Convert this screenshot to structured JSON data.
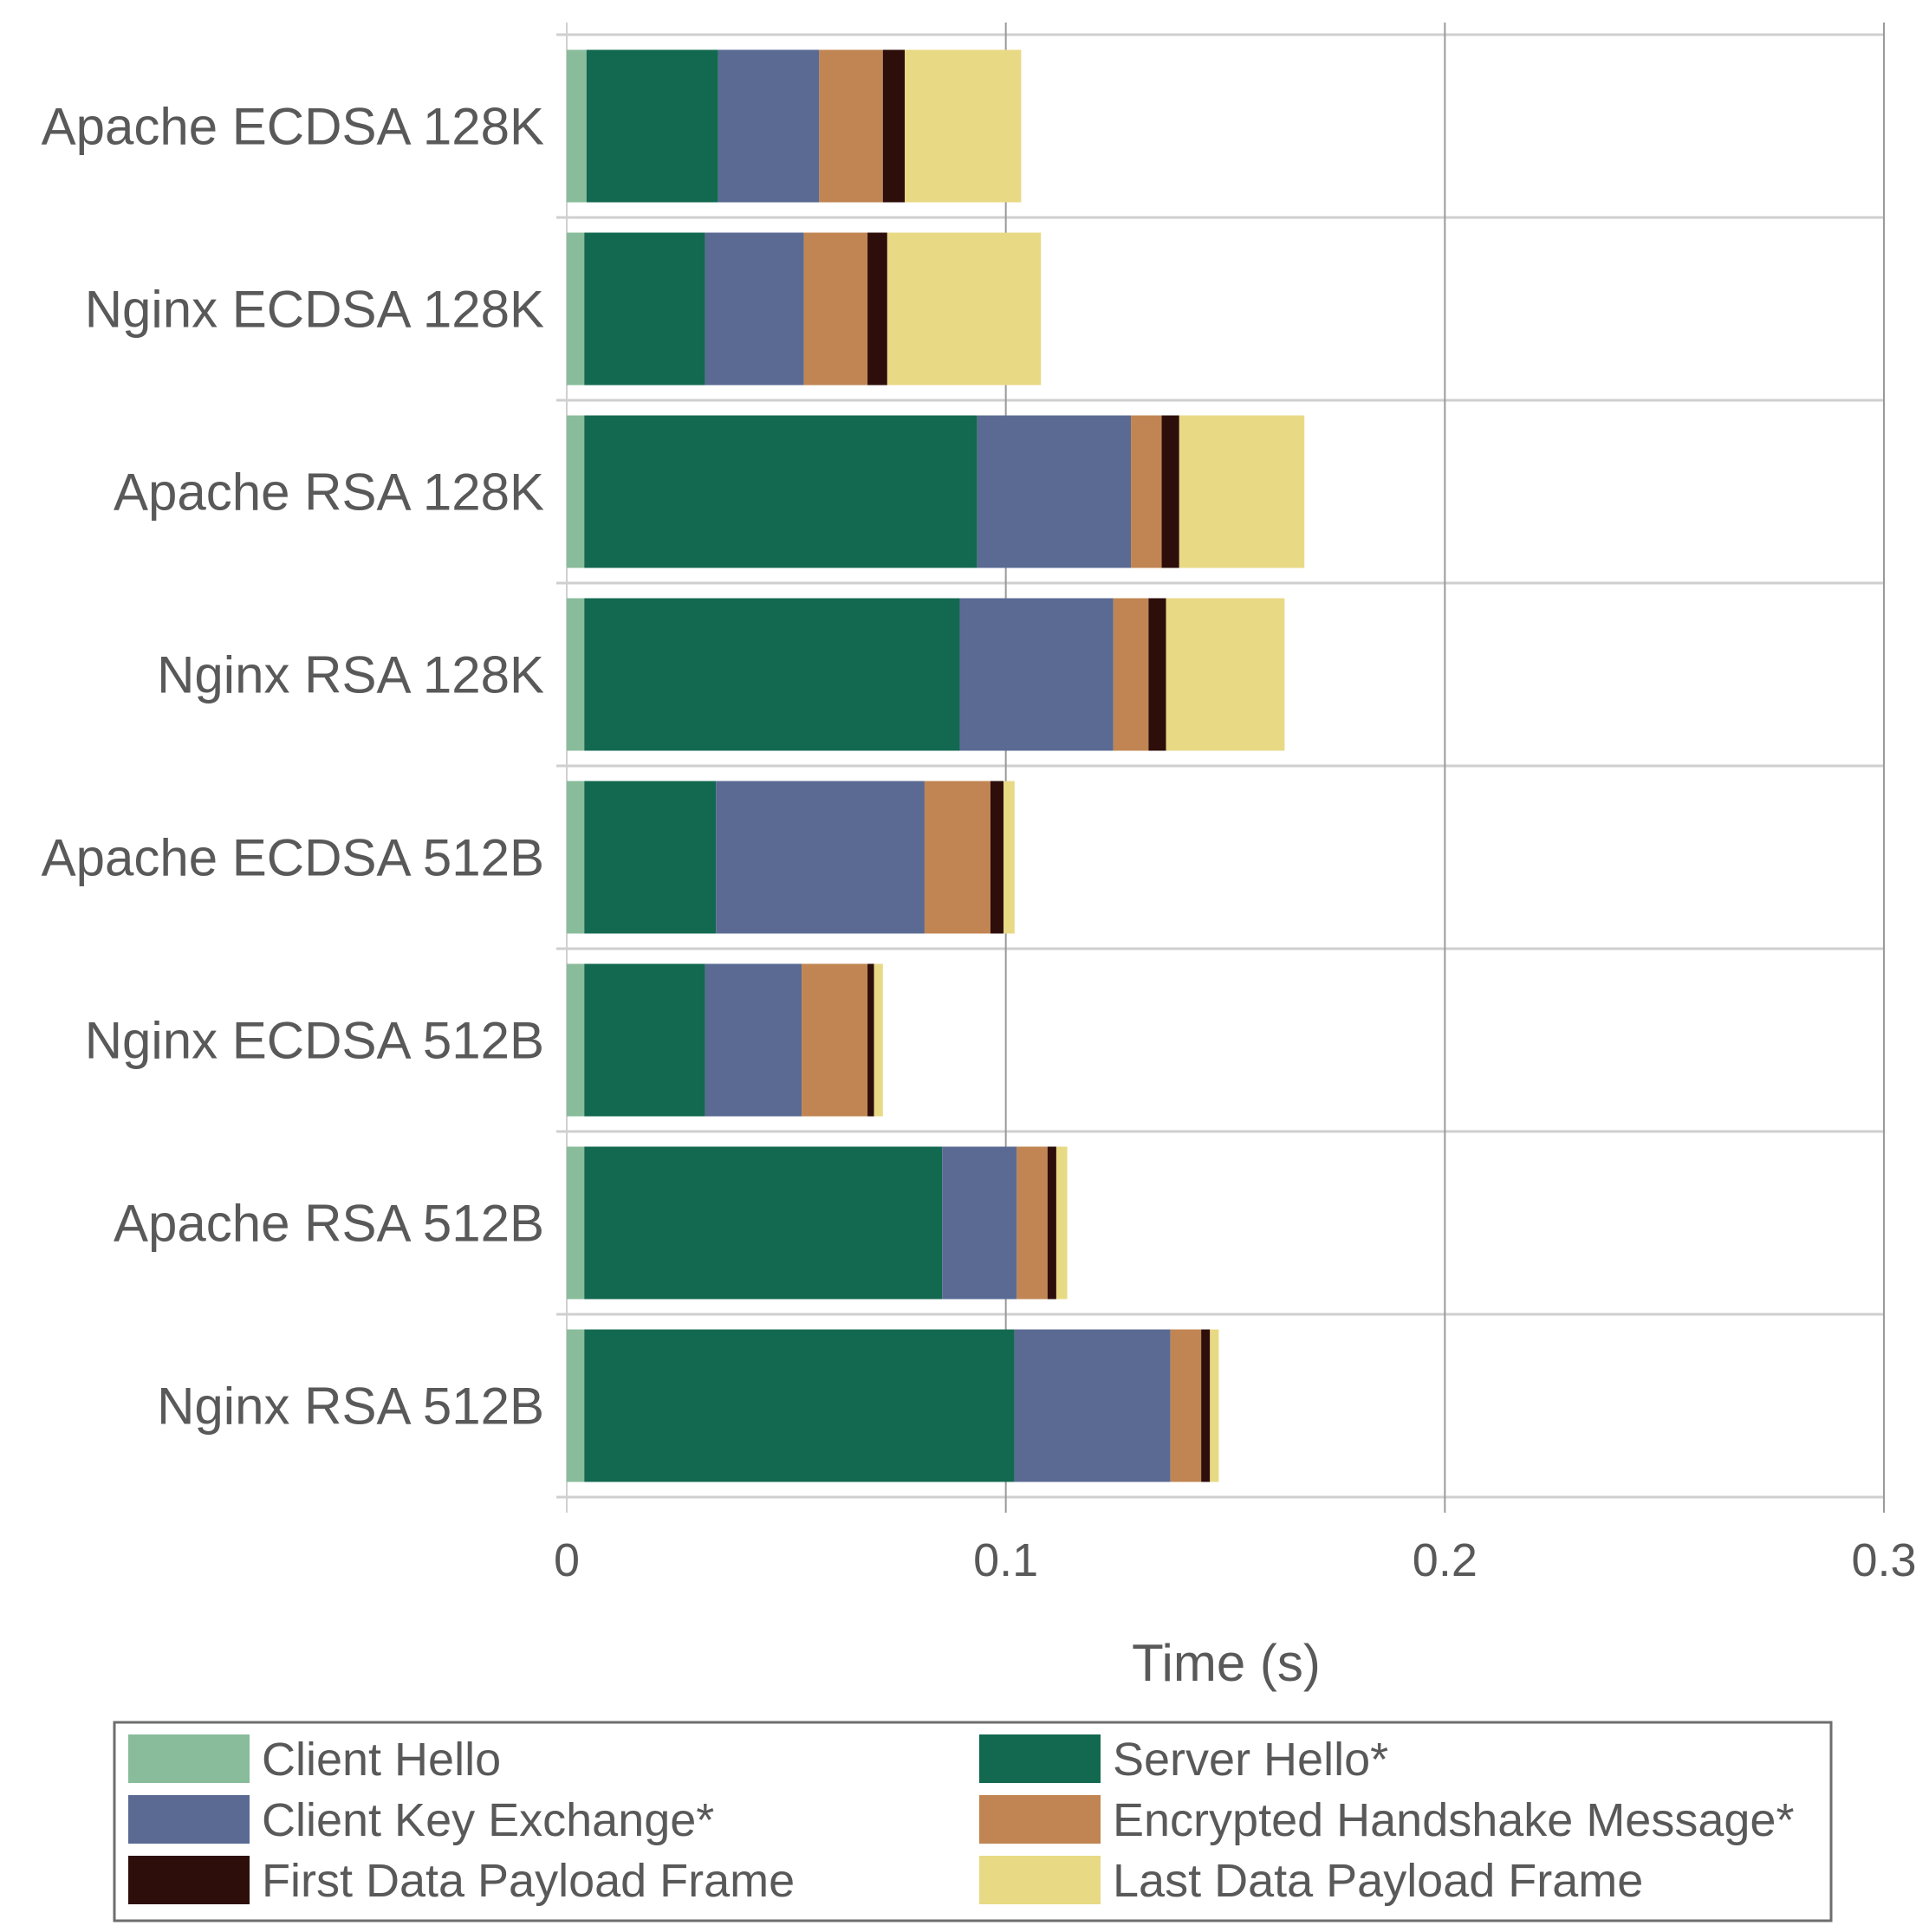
{
  "chart_data": {
    "type": "bar",
    "orientation": "horizontal",
    "stacked": true,
    "title": "",
    "xlabel": "Time (s)",
    "ylabel": "",
    "xlim": [
      0,
      0.3
    ],
    "xticks": [
      0,
      0.1,
      0.2,
      0.3
    ],
    "xtick_labels": [
      "0",
      "0.1",
      "0.2",
      "0.3"
    ],
    "grid": true,
    "legend_position": "bottom",
    "categories": [
      "Apache ECDSA 128K",
      "Nginx ECDSA 128K",
      "Apache RSA 128K",
      "Nginx RSA 128K",
      "Apache ECDSA 512B",
      "Nginx ECDSA 512B",
      "Apache RSA 512B",
      "Nginx RSA 512B"
    ],
    "series": [
      {
        "name": "Client Hello",
        "color": "#88bc9b",
        "values": [
          0.0045,
          0.004,
          0.004,
          0.004,
          0.004,
          0.004,
          0.004,
          0.004
        ]
      },
      {
        "name": "Server Hello*",
        "color": "#136850",
        "values": [
          0.03,
          0.0275,
          0.0895,
          0.0855,
          0.03,
          0.0275,
          0.0815,
          0.098
        ]
      },
      {
        "name": "Client Key Exchange*",
        "color": "#5a6a93",
        "values": [
          0.023,
          0.0225,
          0.035,
          0.035,
          0.0475,
          0.022,
          0.017,
          0.0355
        ]
      },
      {
        "name": "Encrypted Handshake Message*",
        "color": "#c08552",
        "values": [
          0.0145,
          0.0145,
          0.007,
          0.008,
          0.015,
          0.015,
          0.007,
          0.007
        ]
      },
      {
        "name": "First Data Payload Frame",
        "color": "#2e0e0a",
        "values": [
          0.005,
          0.0045,
          0.004,
          0.004,
          0.003,
          0.0015,
          0.002,
          0.002
        ]
      },
      {
        "name": "Last Data Payload Frame",
        "color": "#e8d985",
        "values": [
          0.0265,
          0.035,
          0.0285,
          0.027,
          0.0025,
          0.002,
          0.0025,
          0.002
        ]
      }
    ]
  }
}
